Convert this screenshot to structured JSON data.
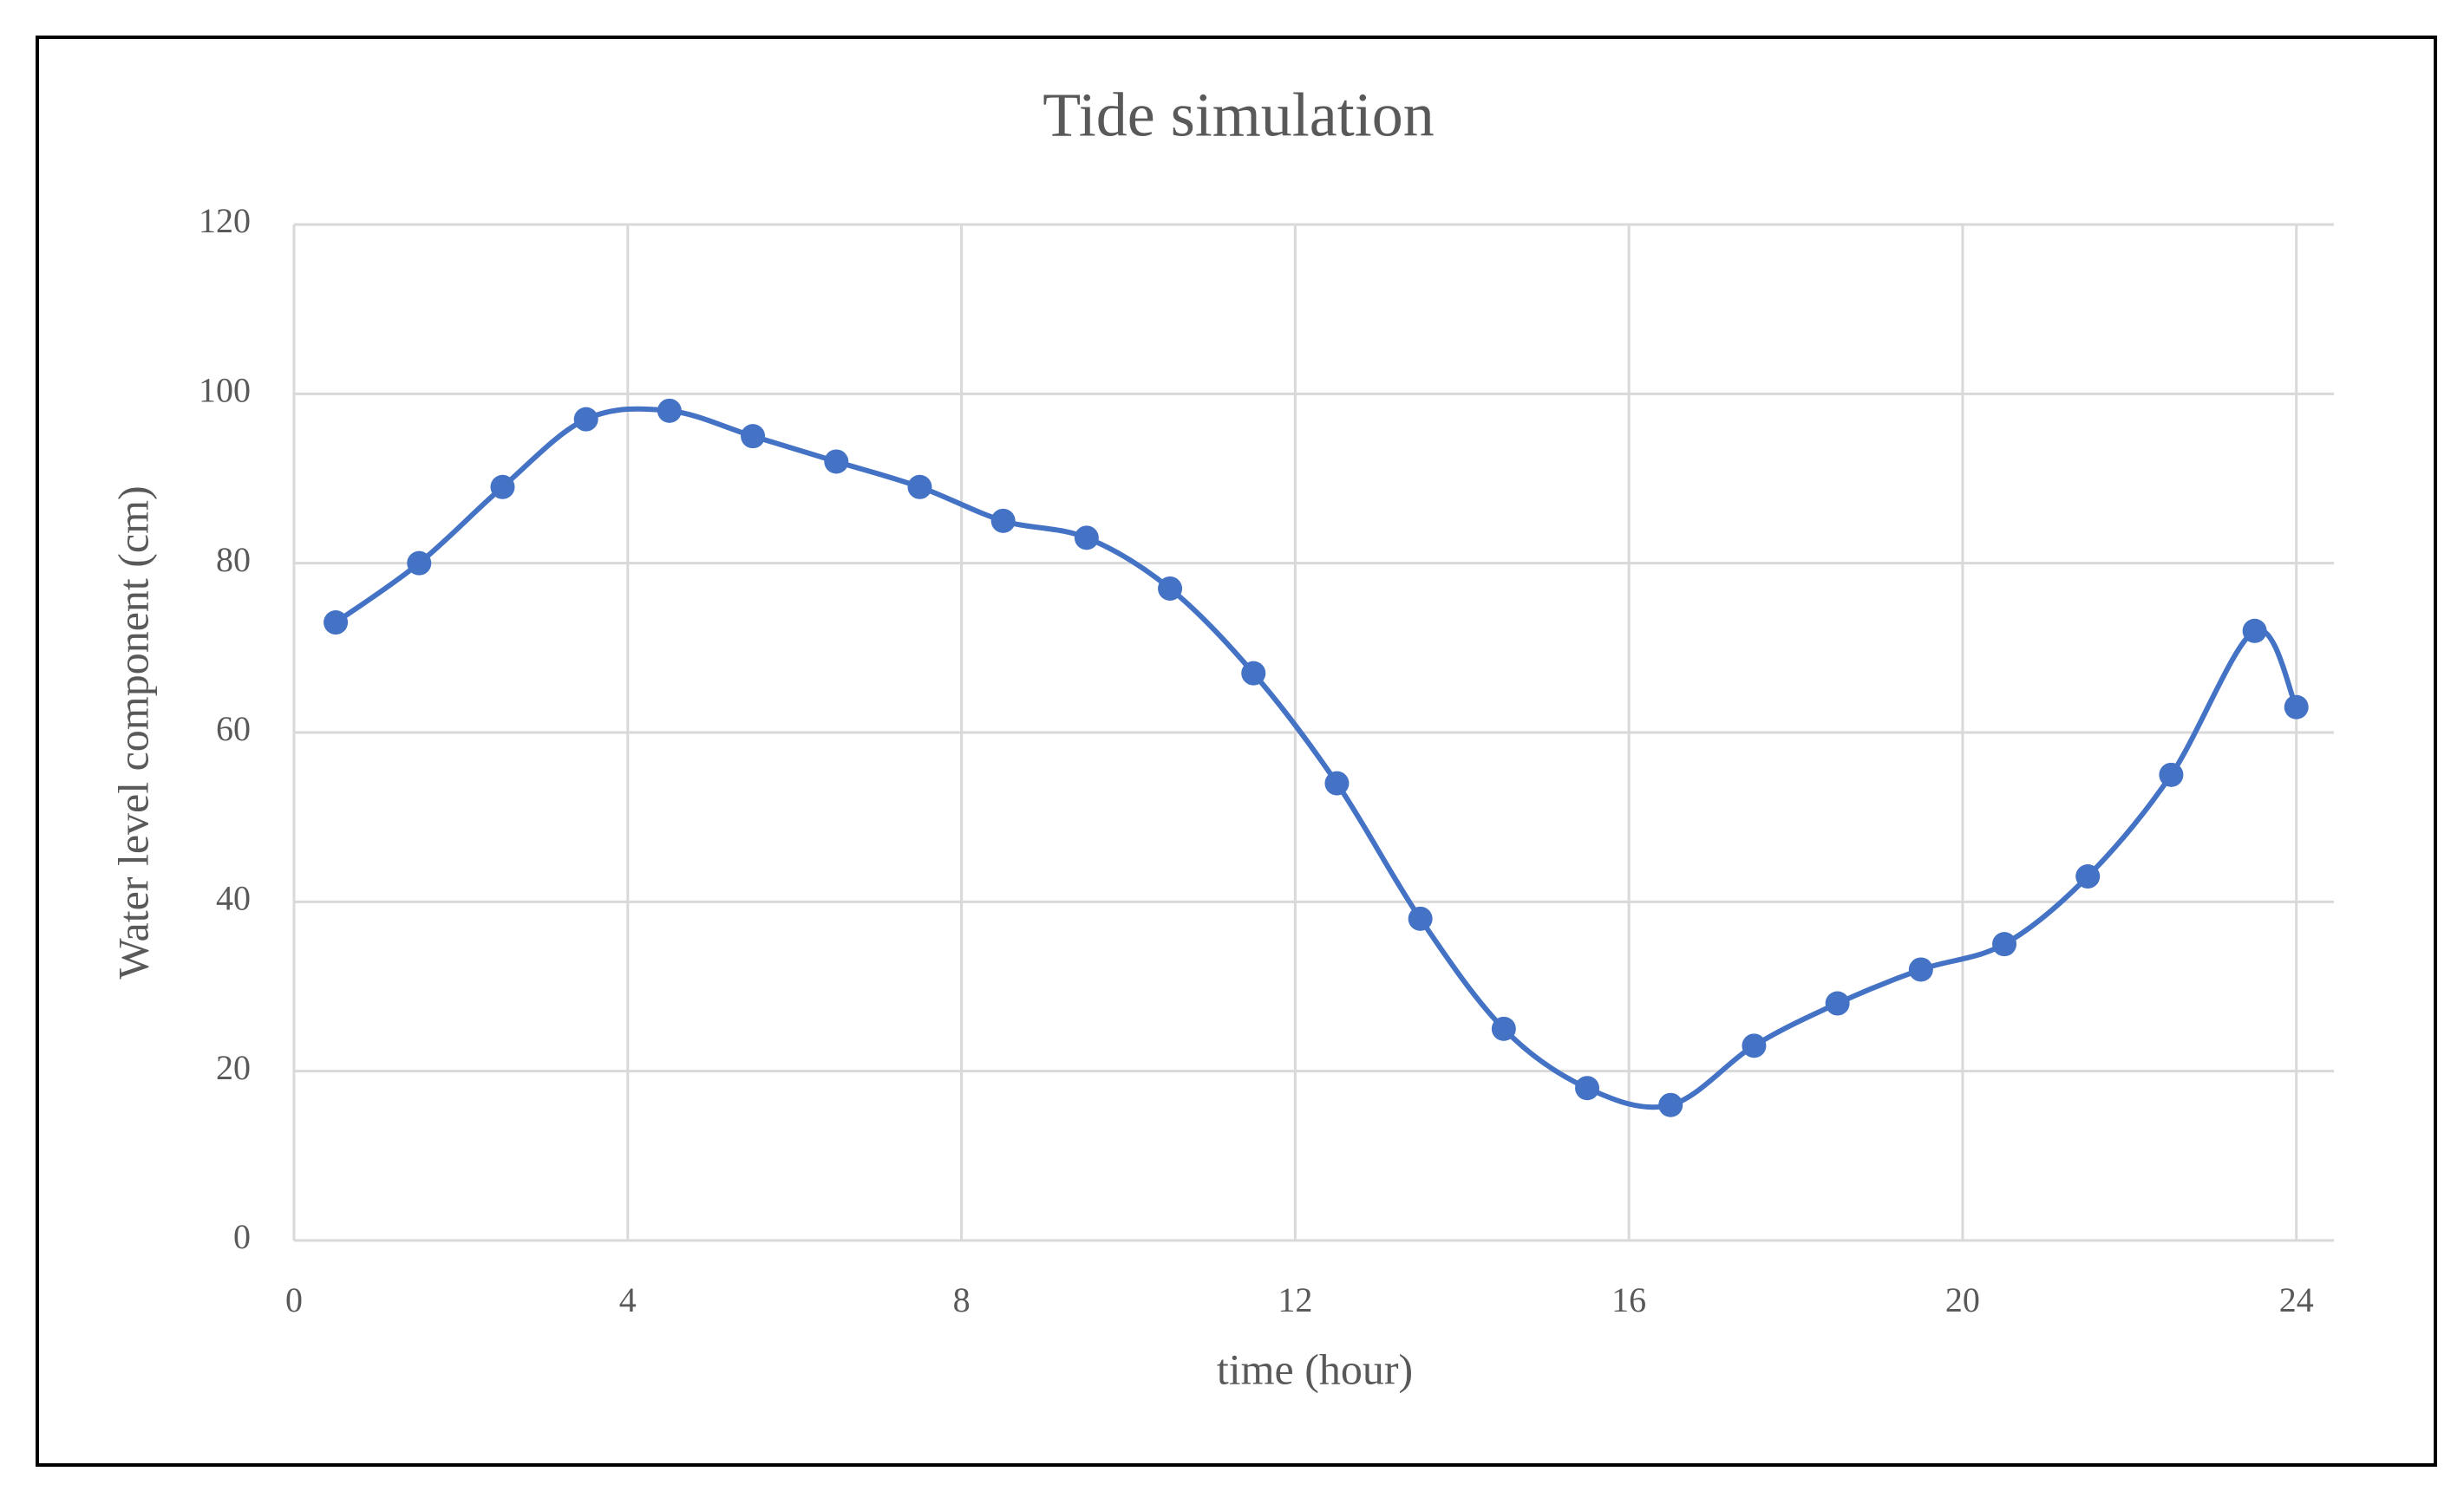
{
  "chart_data": {
    "type": "line",
    "title": "Tide simulation",
    "xlabel": "time (hour)",
    "ylabel": "Water level component (cm)",
    "x": [
      0.5,
      1.5,
      2.5,
      3.5,
      4.5,
      5.5,
      6.5,
      7.5,
      8.5,
      9.5,
      10.5,
      11.5,
      12.5,
      13.5,
      14.5,
      15.5,
      16.5,
      17.5,
      18.5,
      19.5,
      20.5,
      21.5,
      22.5,
      23.5,
      24
    ],
    "values": [
      73,
      80,
      89,
      97,
      98,
      95,
      92,
      89,
      85,
      83,
      77,
      67,
      54,
      38,
      25,
      18,
      16,
      23,
      28,
      32,
      35,
      43,
      55,
      72,
      63
    ],
    "color": "#4472c4",
    "xlim": [
      0,
      24.45
    ],
    "xticks": [
      0,
      4,
      8,
      12,
      16,
      20,
      24
    ],
    "ylim": [
      0,
      120
    ],
    "yticks": [
      0,
      20,
      40,
      60,
      80,
      100,
      120
    ],
    "grid": true,
    "smooth": true,
    "markers": true
  }
}
